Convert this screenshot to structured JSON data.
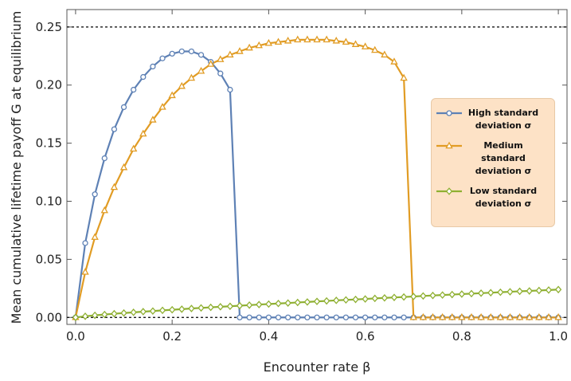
{
  "chart_data": {
    "type": "line",
    "xlabel": "Encounter rate β",
    "ylabel": "Mean cumulative lifetime payoff G at equilibrium",
    "x": [
      0,
      0.02,
      0.04,
      0.06,
      0.08,
      0.1,
      0.12,
      0.14,
      0.16,
      0.18,
      0.2,
      0.22,
      0.24,
      0.26,
      0.28,
      0.3,
      0.32,
      0.34,
      0.36,
      0.38,
      0.4,
      0.42,
      0.44,
      0.46,
      0.48,
      0.5,
      0.52,
      0.54,
      0.56,
      0.58,
      0.6,
      0.62,
      0.64,
      0.66,
      0.68,
      0.7,
      0.72,
      0.74,
      0.76,
      0.78,
      0.8,
      0.82,
      0.84,
      0.86,
      0.88,
      0.9,
      0.92,
      0.94,
      0.96,
      0.98,
      1.0
    ],
    "series": [
      {
        "name": "High standard deviation σ",
        "color": "#5e81b5",
        "marker": "circle",
        "values": [
          0,
          0.064,
          0.106,
          0.137,
          0.162,
          0.181,
          0.196,
          0.207,
          0.216,
          0.223,
          0.227,
          0.229,
          0.229,
          0.226,
          0.22,
          0.21,
          0.196,
          0,
          0,
          0,
          0,
          0,
          0,
          0,
          0,
          0,
          0,
          0,
          0,
          0,
          0,
          0,
          0,
          0,
          0,
          0,
          0,
          0,
          0,
          0,
          0,
          0,
          0,
          0,
          0,
          0,
          0,
          0,
          0,
          0,
          0
        ]
      },
      {
        "name": "Medium standard deviation σ",
        "color": "#e19c24",
        "marker": "triangle",
        "values": [
          0,
          0.039,
          0.069,
          0.092,
          0.112,
          0.129,
          0.145,
          0.158,
          0.17,
          0.181,
          0.191,
          0.199,
          0.206,
          0.212,
          0.218,
          0.222,
          0.226,
          0.229,
          0.232,
          0.234,
          0.236,
          0.237,
          0.238,
          0.239,
          0.239,
          0.239,
          0.239,
          0.238,
          0.237,
          0.235,
          0.233,
          0.23,
          0.226,
          0.22,
          0.206,
          0,
          0,
          0,
          0,
          0,
          0,
          0,
          0,
          0,
          0,
          0,
          0,
          0,
          0,
          0,
          0
        ]
      },
      {
        "name": "Low standard deviation σ",
        "color": "#8fb032",
        "marker": "diamond",
        "values": [
          0,
          0.001,
          0.0018,
          0.0025,
          0.0032,
          0.0038,
          0.0044,
          0.005,
          0.0055,
          0.0061,
          0.0066,
          0.0071,
          0.0077,
          0.0082,
          0.0087,
          0.0092,
          0.0096,
          0.0101,
          0.0106,
          0.0111,
          0.0115,
          0.012,
          0.0124,
          0.0129,
          0.0133,
          0.0138,
          0.0142,
          0.0147,
          0.0151,
          0.0155,
          0.0159,
          0.0164,
          0.0168,
          0.0172,
          0.0176,
          0.018,
          0.0185,
          0.0189,
          0.0193,
          0.0197,
          0.0201,
          0.0205,
          0.0209,
          0.0213,
          0.0217,
          0.0221,
          0.0225,
          0.0228,
          0.0232,
          0.0236,
          0.024
        ]
      }
    ],
    "reference_lines": [
      0,
      0.25
    ],
    "xlim": [
      -0.018,
      1.018
    ],
    "ylim": [
      -0.006,
      0.265
    ],
    "xticks": [
      {
        "value": 0,
        "label": "0.0"
      },
      {
        "value": 0.2,
        "label": "0.2"
      },
      {
        "value": 0.4,
        "label": "0.4"
      },
      {
        "value": 0.6,
        "label": "0.6"
      },
      {
        "value": 0.8,
        "label": "0.8"
      },
      {
        "value": 1,
        "label": "1.0"
      }
    ],
    "yticks": [
      {
        "value": 0,
        "label": "0.00"
      },
      {
        "value": 0.05,
        "label": "0.05"
      },
      {
        "value": 0.1,
        "label": "0.10"
      },
      {
        "value": 0.15,
        "label": "0.15"
      },
      {
        "value": 0.2,
        "label": "0.20"
      },
      {
        "value": 0.25,
        "label": "0.25"
      }
    ],
    "grid": false
  }
}
